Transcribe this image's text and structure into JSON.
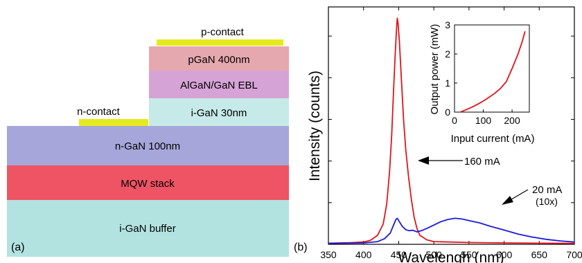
{
  "panel_a": {
    "label": "(a)",
    "layers": [
      {
        "name": "p-contact",
        "color": "#E5EA1E"
      },
      {
        "name": "pGaN 400nm",
        "color": "#E5A8AE"
      },
      {
        "name": "AlGaN/GaN EBL",
        "color": "#D5A3D6"
      },
      {
        "name": "n-contact",
        "color": "#E5EA1E"
      },
      {
        "name": "i-GaN 30nm",
        "color": "#C6EAE7"
      },
      {
        "name": "n-GaN 100nm",
        "color": "#A6A6DA"
      },
      {
        "name": "MQW stack",
        "color": "#EE5464"
      },
      {
        "name": "i-GaN buffer",
        "color": "#B2E3E1"
      }
    ]
  },
  "chart_data": [
    {
      "type": "line",
      "panel_label": "(b)",
      "xlabel": "Wavelengh (nm)",
      "ylabel": "Intensity (counts)",
      "xlim": [
        350,
        700
      ],
      "xticks": [
        350,
        400,
        450,
        500,
        550,
        600,
        650,
        700
      ],
      "x_tick_labels": [
        "350",
        "400",
        "450",
        "500",
        "550",
        "600",
        "650",
        "700"
      ],
      "ylim": [
        0,
        1.05
      ],
      "y_tick_labels_shown": false,
      "grid": false,
      "series": [
        {
          "name": "160 mA",
          "color": "#E0141B",
          "points": [
            [
              350,
              0.005
            ],
            [
              380,
              0.007
            ],
            [
              400,
              0.01
            ],
            [
              410,
              0.018
            ],
            [
              420,
              0.04
            ],
            [
              428,
              0.09
            ],
            [
              433,
              0.18
            ],
            [
              437,
              0.32
            ],
            [
              440,
              0.48
            ],
            [
              443,
              0.7
            ],
            [
              445,
              0.84
            ],
            [
              447,
              0.96
            ],
            [
              448,
              1.0
            ],
            [
              449,
              0.98
            ],
            [
              451,
              0.9
            ],
            [
              454,
              0.72
            ],
            [
              457,
              0.55
            ],
            [
              460,
              0.42
            ],
            [
              464,
              0.3
            ],
            [
              468,
              0.2
            ],
            [
              472,
              0.12
            ],
            [
              476,
              0.07
            ],
            [
              480,
              0.04
            ],
            [
              490,
              0.02
            ],
            [
              500,
              0.012
            ],
            [
              550,
              0.008
            ],
            [
              600,
              0.006
            ],
            [
              650,
              0.005
            ],
            [
              700,
              0.004
            ]
          ]
        },
        {
          "name": "20 mA (10x)",
          "color": "#1A1ADB",
          "points": [
            [
              350,
              0.004
            ],
            [
              400,
              0.006
            ],
            [
              420,
              0.012
            ],
            [
              430,
              0.025
            ],
            [
              438,
              0.05
            ],
            [
              442,
              0.08
            ],
            [
              446,
              0.11
            ],
            [
              448,
              0.115
            ],
            [
              451,
              0.1
            ],
            [
              455,
              0.08
            ],
            [
              460,
              0.065
            ],
            [
              465,
              0.06
            ],
            [
              470,
              0.062
            ],
            [
              476,
              0.055
            ],
            [
              482,
              0.06
            ],
            [
              490,
              0.07
            ],
            [
              500,
              0.085
            ],
            [
              510,
              0.1
            ],
            [
              520,
              0.11
            ],
            [
              530,
              0.115
            ],
            [
              540,
              0.112
            ],
            [
              550,
              0.105
            ],
            [
              565,
              0.095
            ],
            [
              580,
              0.08
            ],
            [
              600,
              0.063
            ],
            [
              620,
              0.045
            ],
            [
              640,
              0.032
            ],
            [
              660,
              0.022
            ],
            [
              680,
              0.015
            ],
            [
              700,
              0.01
            ]
          ]
        }
      ],
      "annotations": [
        {
          "text": "160 mA",
          "target": [
            478,
            0.52
          ]
        },
        {
          "text": "20 mA",
          "text2": "(10x)",
          "target": [
            618,
            0.095
          ]
        }
      ]
    },
    {
      "type": "line",
      "inset": true,
      "xlabel": "Input current (mA)",
      "ylabel": "Output power (mW)",
      "xlim": [
        0,
        260
      ],
      "ylim": [
        0,
        3
      ],
      "xticks": [
        0,
        100,
        200
      ],
      "x_tick_labels": [
        "0",
        "100",
        "200"
      ],
      "yticks": [
        0,
        1,
        2,
        3
      ],
      "y_tick_labels": [
        "0",
        "1",
        "2",
        "3"
      ],
      "series": [
        {
          "color": "#E0141B",
          "points": [
            [
              20,
              0.0
            ],
            [
              40,
              0.08
            ],
            [
              60,
              0.17
            ],
            [
              80,
              0.27
            ],
            [
              100,
              0.38
            ],
            [
              120,
              0.51
            ],
            [
              140,
              0.65
            ],
            [
              160,
              0.82
            ],
            [
              180,
              1.05
            ],
            [
              200,
              1.5
            ],
            [
              220,
              1.98
            ],
            [
              235,
              2.42
            ],
            [
              245,
              2.78
            ]
          ]
        }
      ]
    }
  ]
}
